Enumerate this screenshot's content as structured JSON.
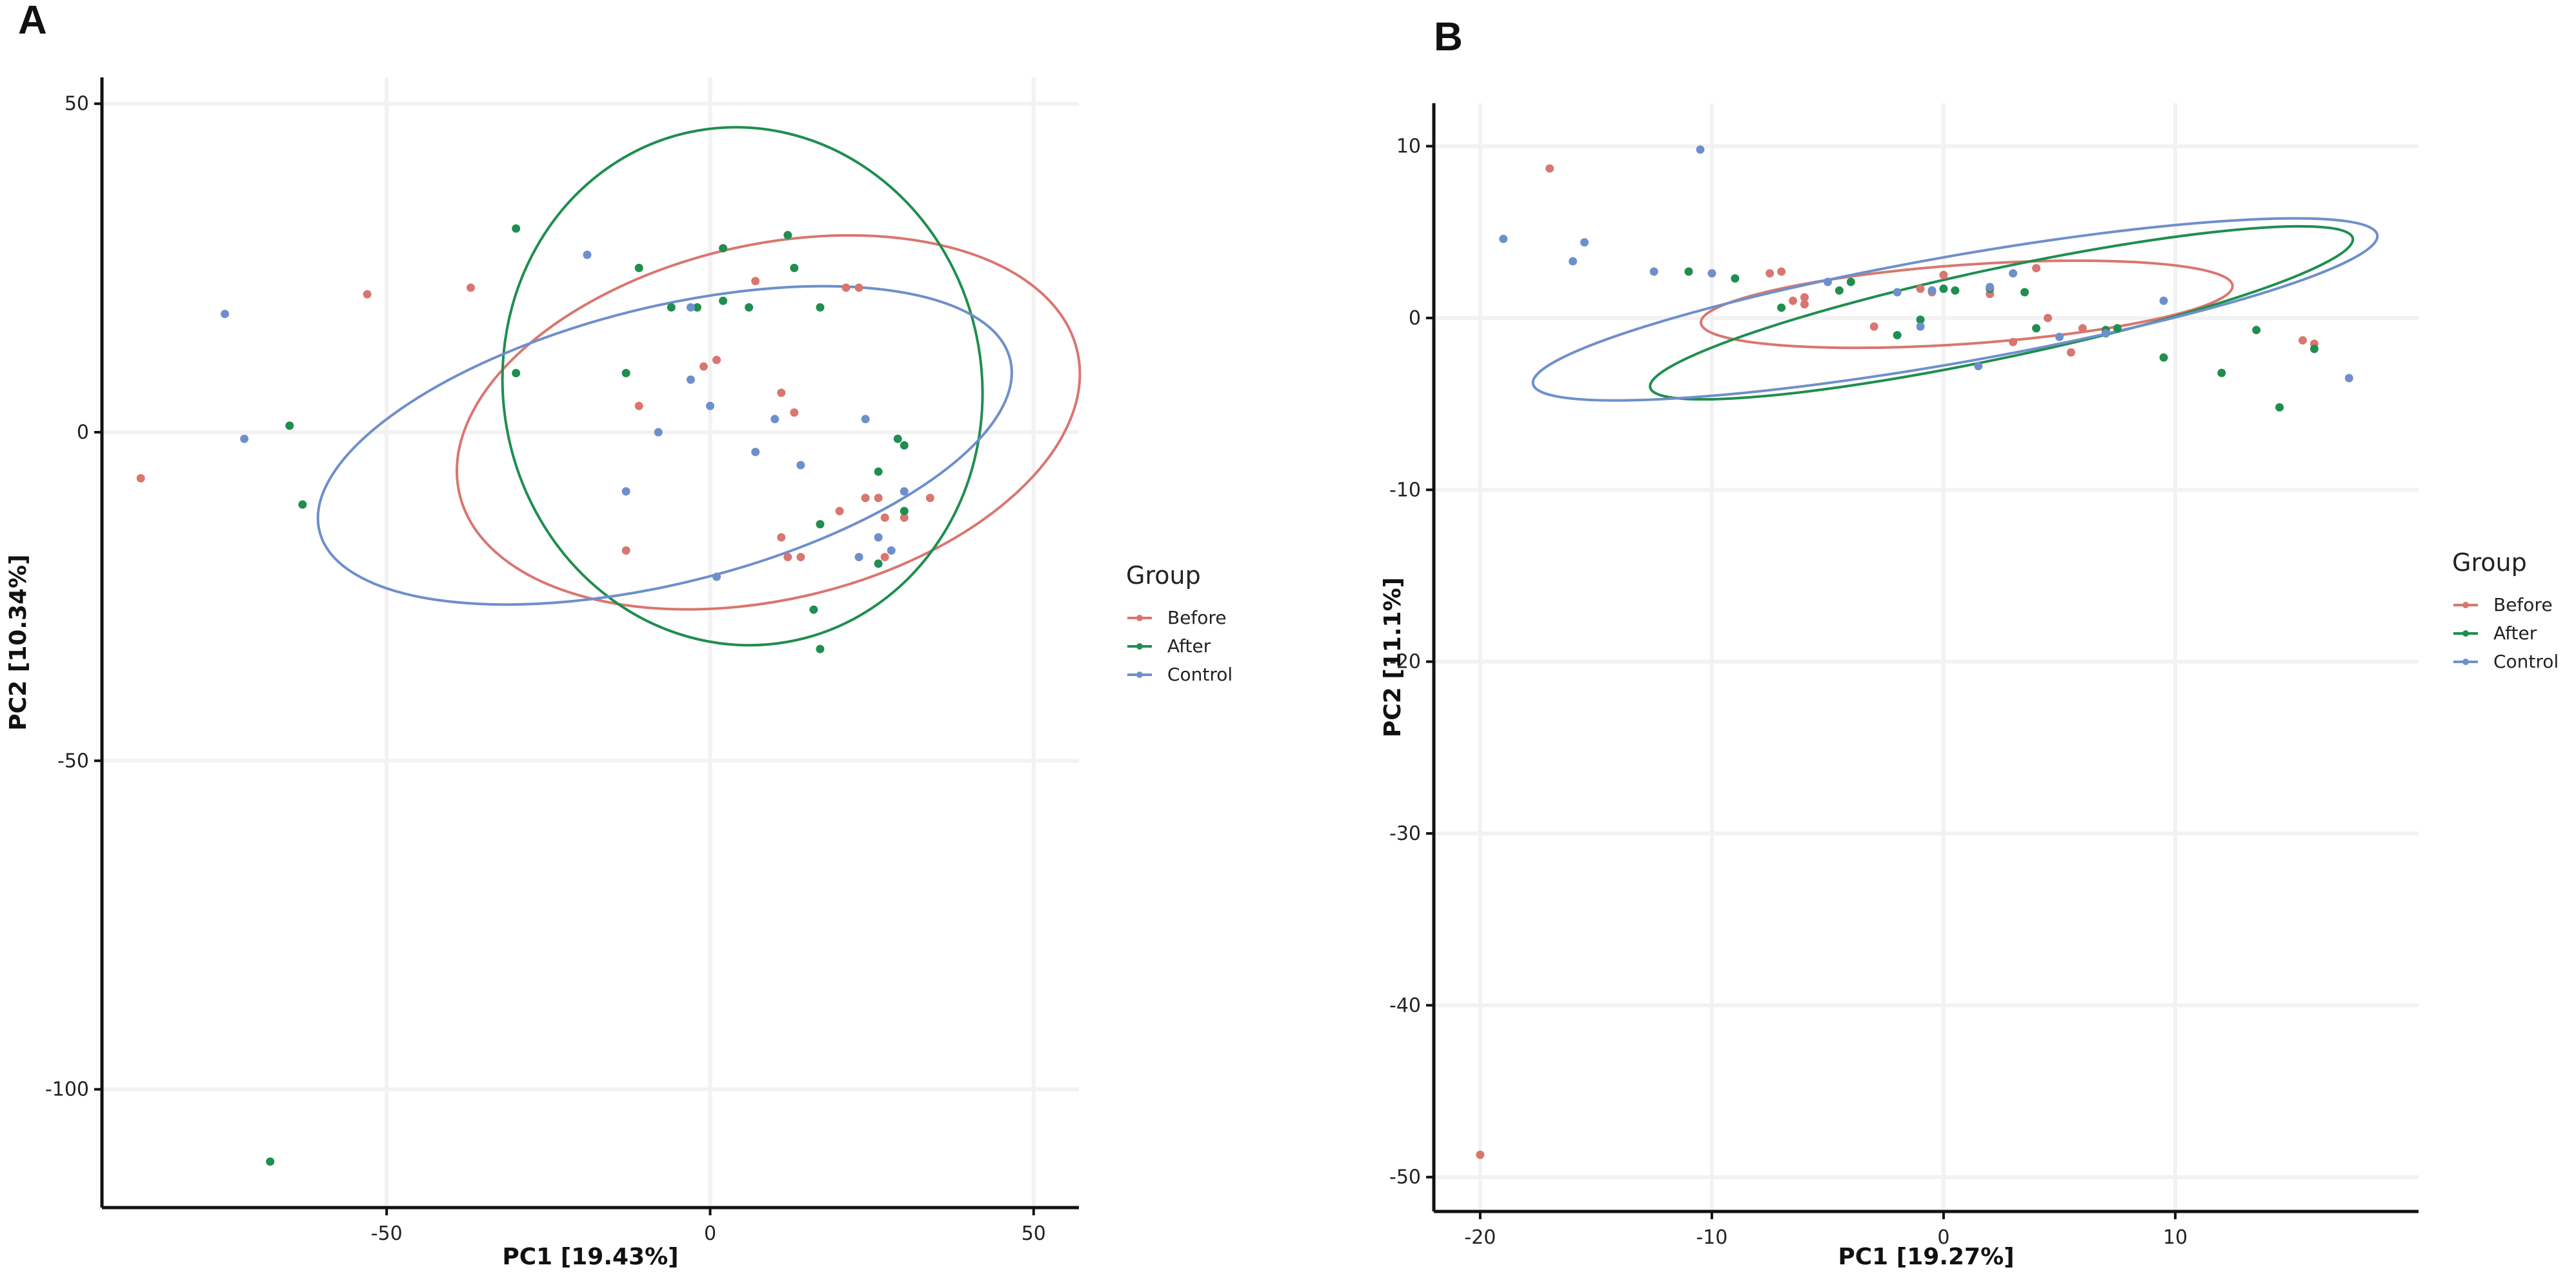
{
  "chart_data": [
    {
      "panel": "A",
      "type": "scatter",
      "title": "",
      "xlabel": "PC1 [19.43%]",
      "ylabel": "PC2 [10.34%]",
      "xlim": [
        -94,
        57
      ],
      "ylim": [
        -118,
        54
      ],
      "xticks": [
        -50,
        0,
        50
      ],
      "yticks": [
        50,
        0,
        -50,
        -100
      ],
      "xtick_labels": [
        "-50",
        "0",
        "50"
      ],
      "ytick_labels": [
        "50",
        "0",
        "-50",
        "-100"
      ],
      "grid": true,
      "legend": {
        "title": "Group",
        "placement": "right"
      },
      "series": [
        {
          "name": "Before",
          "color": "#D9766F",
          "points": [
            [
              -88,
              -7
            ],
            [
              -53,
              21
            ],
            [
              -37,
              22
            ],
            [
              -11,
              4
            ],
            [
              -1,
              10
            ],
            [
              1,
              11
            ],
            [
              7,
              23
            ],
            [
              11,
              6
            ],
            [
              13,
              3
            ],
            [
              21,
              22
            ],
            [
              23,
              22
            ],
            [
              11,
              -16
            ],
            [
              12,
              -19
            ],
            [
              14,
              -19
            ],
            [
              24,
              -10
            ],
            [
              26,
              -10
            ],
            [
              27,
              -13
            ],
            [
              27,
              -19
            ],
            [
              30,
              -13
            ],
            [
              34,
              -10
            ],
            [
              -13,
              -18
            ],
            [
              20,
              -12
            ]
          ],
          "ellipse": {
            "cx": 9,
            "cy": 1.5,
            "rx": 49,
            "ry": 27,
            "angle_deg": -13
          }
        },
        {
          "name": "After",
          "color": "#1F8E4F",
          "points": [
            [
              -65,
              1
            ],
            [
              -63,
              -11
            ],
            [
              -68,
              -111
            ],
            [
              -30,
              31
            ],
            [
              -30,
              9
            ],
            [
              -13,
              9
            ],
            [
              -11,
              25
            ],
            [
              -6,
              19
            ],
            [
              -2,
              19
            ],
            [
              2,
              28
            ],
            [
              2,
              20
            ],
            [
              6,
              19
            ],
            [
              12,
              30
            ],
            [
              13,
              25
            ],
            [
              17,
              19
            ],
            [
              17,
              -14
            ],
            [
              16,
              -27
            ],
            [
              17,
              -33
            ],
            [
              26,
              -6
            ],
            [
              26,
              -20
            ],
            [
              29,
              -1
            ],
            [
              30,
              -2
            ],
            [
              30,
              -12
            ]
          ],
          "ellipse": {
            "cx": 5,
            "cy": 7,
            "rx": 37,
            "ry": 39.5,
            "angle_deg": -10
          }
        },
        {
          "name": "Control",
          "color": "#6E8FCB",
          "points": [
            [
              -75,
              18
            ],
            [
              -72,
              -1
            ],
            [
              -19,
              27
            ],
            [
              -13,
              -9
            ],
            [
              -8,
              0
            ],
            [
              -3,
              8
            ],
            [
              -3,
              19
            ],
            [
              0,
              4
            ],
            [
              1,
              -22
            ],
            [
              7,
              -3
            ],
            [
              10,
              2
            ],
            [
              14,
              -5
            ],
            [
              23,
              -19
            ],
            [
              24,
              2
            ],
            [
              26,
              -16
            ],
            [
              28,
              -18
            ],
            [
              30,
              -9
            ]
          ],
          "ellipse": {
            "cx": -7,
            "cy": -2,
            "rx": 55,
            "ry": 21,
            "angle_deg": -14
          }
        }
      ]
    },
    {
      "panel": "B",
      "type": "scatter",
      "title": "",
      "xlabel": "PC1 [19.27%]",
      "ylabel": "PC2 [11.1%]",
      "xlim": [
        -22,
        20.5
      ],
      "ylim": [
        -52,
        12.5
      ],
      "xticks": [
        -20,
        -10,
        0,
        10
      ],
      "yticks": [
        10,
        0,
        -10,
        -20,
        -30,
        -40,
        -50
      ],
      "xtick_labels": [
        "-20",
        "-10",
        "0",
        "10"
      ],
      "ytick_labels": [
        "10",
        "0",
        "-10",
        "-20",
        "-30",
        "-40",
        "-50"
      ],
      "grid": true,
      "legend": {
        "title": "Group",
        "placement": "right"
      },
      "series": [
        {
          "name": "Before",
          "color": "#D9766F",
          "points": [
            [
              -17,
              8.7
            ],
            [
              -20,
              -48.7
            ],
            [
              -7.5,
              2.6
            ],
            [
              -7,
              2.7
            ],
            [
              -6.5,
              1.0
            ],
            [
              -6,
              1.2
            ],
            [
              -6,
              0.8
            ],
            [
              -3,
              -0.5
            ],
            [
              -1,
              1.7
            ],
            [
              -0.5,
              1.5
            ],
            [
              0,
              2.5
            ],
            [
              2,
              1.4
            ],
            [
              3,
              -1.4
            ],
            [
              4,
              2.9
            ],
            [
              4.5,
              0
            ],
            [
              5.5,
              -2
            ],
            [
              6,
              -0.6
            ],
            [
              15.5,
              -1.3
            ],
            [
              16,
              -1.5
            ]
          ],
          "ellipse": {
            "cx": 1,
            "cy": 0.8,
            "rx": 11.5,
            "ry": 2.3,
            "angle_deg": -4
          }
        },
        {
          "name": "After",
          "color": "#1F8E4F",
          "points": [
            [
              -11,
              2.7
            ],
            [
              -9,
              2.3
            ],
            [
              -7,
              0.6
            ],
            [
              -4.5,
              1.6
            ],
            [
              -4,
              2.1
            ],
            [
              -2,
              -1
            ],
            [
              -1,
              -0.1
            ],
            [
              0,
              1.7
            ],
            [
              0.5,
              1.6
            ],
            [
              2,
              1.7
            ],
            [
              3.5,
              1.5
            ],
            [
              4,
              -0.6
            ],
            [
              7,
              -0.7
            ],
            [
              7.5,
              -0.6
            ],
            [
              9.5,
              -2.3
            ],
            [
              13.5,
              -0.7
            ],
            [
              16,
              -1.8
            ],
            [
              14.5,
              -5.2
            ],
            [
              12,
              -3.2
            ]
          ],
          "ellipse": {
            "cx": 2.5,
            "cy": 0.3,
            "rx": 15.5,
            "ry": 2.6,
            "angle_deg": -12
          }
        },
        {
          "name": "Control",
          "color": "#6E8FCB",
          "points": [
            [
              -19,
              4.6
            ],
            [
              -16,
              3.3
            ],
            [
              -15.5,
              4.4
            ],
            [
              -12.5,
              2.7
            ],
            [
              -10.5,
              9.8
            ],
            [
              -10,
              2.6
            ],
            [
              -5,
              2.1
            ],
            [
              -2,
              1.5
            ],
            [
              -1,
              -0.5
            ],
            [
              -0.5,
              1.6
            ],
            [
              2,
              1.8
            ],
            [
              3,
              2.6
            ],
            [
              7,
              -0.9
            ],
            [
              9.5,
              1.0
            ],
            [
              17.5,
              -3.5
            ],
            [
              1.5,
              -2.8
            ],
            [
              5,
              -1.1
            ]
          ],
          "ellipse": {
            "cx": 0.5,
            "cy": 0.5,
            "rx": 18.5,
            "ry": 3.1,
            "angle_deg": -10
          }
        }
      ]
    }
  ],
  "panels": {
    "a_label": "A",
    "b_label": "B"
  }
}
